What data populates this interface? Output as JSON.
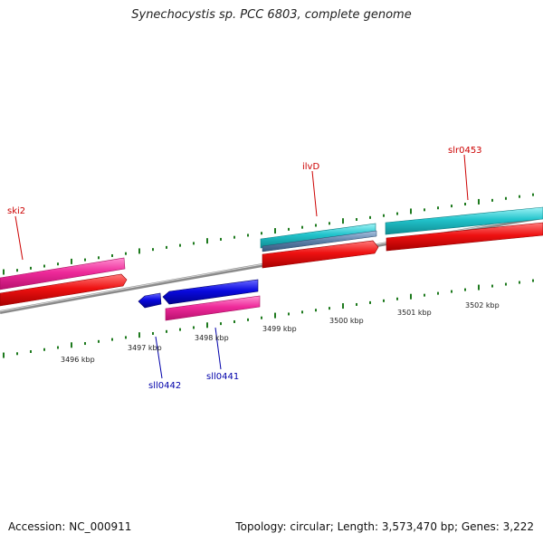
{
  "title": "Synechocystis sp. PCC 6803, complete genome",
  "footer": {
    "accession": "Accession: NC_000911",
    "genome_info": "Topology: circular; Length: 3,573,470 bp; Genes: 3,222"
  },
  "map": {
    "ruler_ticks": [
      "3496 kbp",
      "3497 kbp",
      "3498 kbp",
      "3499 kbp",
      "3500 kbp",
      "3501 kbp",
      "3502 kbp"
    ],
    "gene_labels": [
      "ski2",
      "ilvD",
      "slr0453",
      "sll0442",
      "sll0441"
    ],
    "colors": {
      "backbone": "#8a8a8a",
      "tick": "#1e7a1e",
      "forward_label": "#cc0000",
      "reverse_label": "#0000aa",
      "cds_red": "#ee1111",
      "magenta": "#ee2a9a",
      "cyan": "#22c4cc",
      "steel": "#5b7fa8",
      "blue": "#0a0ae0"
    }
  }
}
